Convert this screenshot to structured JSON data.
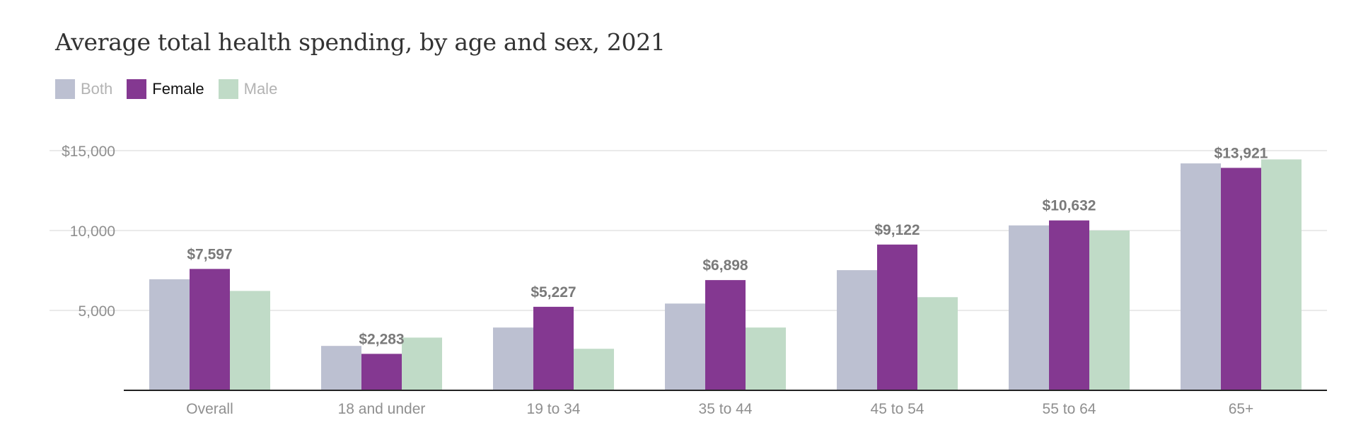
{
  "chart_data": {
    "type": "bar",
    "title": "Average total health spending, by age and sex, 2021",
    "categories": [
      "Overall",
      "18 and under",
      "19 to 34",
      "35 to 44",
      "45 to 54",
      "55 to 64",
      "65+"
    ],
    "series": [
      {
        "name": "Both",
        "color": "#bcc0d1",
        "values": [
          6950,
          2780,
          3930,
          5430,
          7520,
          10320,
          14200
        ]
      },
      {
        "name": "Female",
        "color": "#843891",
        "values": [
          7597,
          2283,
          5227,
          6898,
          9122,
          10632,
          13921
        ]
      },
      {
        "name": "Male",
        "color": "#c0dbc7",
        "values": [
          6220,
          3300,
          2600,
          3930,
          5830,
          10000,
          14450
        ]
      }
    ],
    "data_labels": [
      "$7,597",
      "$2,283",
      "$5,227",
      "$6,898",
      "$9,122",
      "$10,632",
      "$13,921"
    ],
    "y_ticks": [
      {
        "value": 5000,
        "label": "5,000"
      },
      {
        "value": 10000,
        "label": "10,000"
      },
      {
        "value": 15000,
        "label": "$15,000"
      }
    ],
    "ylim": [
      0,
      15000
    ],
    "grid": true,
    "highlighted_series": "Female",
    "legend_position": "top-left",
    "xlabel": "",
    "ylabel": ""
  }
}
